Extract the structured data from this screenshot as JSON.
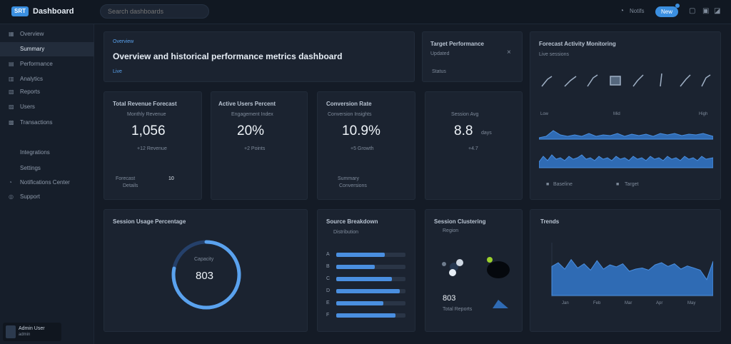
{
  "topbar": {
    "logo": "SRT",
    "title": "Dashboard",
    "search_placeholder": "Search dashboards",
    "notif_label": "Notifs",
    "new_label": "New"
  },
  "sidebar": {
    "items": [
      {
        "label": "Overview"
      },
      {
        "label": "Summary"
      },
      {
        "label": "Performance"
      },
      {
        "label": "Analytics"
      },
      {
        "label": "Reports"
      },
      {
        "label": "Users"
      },
      {
        "label": "Transactions"
      },
      {
        "label": "Integrations"
      },
      {
        "label": "Settings"
      },
      {
        "label": "Notifications Center"
      },
      {
        "label": "Support"
      }
    ],
    "user": {
      "name": "Admin User",
      "role": "admin"
    }
  },
  "hero": {
    "tag": "Overview",
    "headline": "Overview and historical performance metrics dashboard",
    "badge": "Live"
  },
  "target_card": {
    "title": "Target Performance",
    "sub": "Updated",
    "status": "Status"
  },
  "stats": [
    {
      "title": "Total Revenue Forecast",
      "label": "Monthly Revenue",
      "value": "1,056",
      "trend": "+12 Revenue",
      "f1": "Forecast",
      "f2": "Details",
      "side": "10"
    },
    {
      "title": "Active Users Percent",
      "label": "Engagement Index",
      "value": "20%",
      "trend": "+2 Points",
      "f1": "",
      "f2": "",
      "side": ""
    },
    {
      "title": "Conversion Rate",
      "label": "Conversion Insights",
      "value": "10.9%",
      "trend": "+5 Growth",
      "f1": "Summary",
      "f2": "Conversions",
      "side": ""
    },
    {
      "title": "",
      "label": "Session Avg",
      "value": "8.8",
      "unit": "days",
      "trend": "+4.7",
      "f1": "",
      "f2": "",
      "side": ""
    }
  ],
  "activity": {
    "title": "Forecast Activity Monitoring",
    "sub": "Live sessions",
    "r1_left": "Low",
    "r1_mid": "Mid",
    "r1_right": "High",
    "foot1": "Baseline",
    "foot2": "Target"
  },
  "gauge": {
    "title": "Session Usage Percentage",
    "label": "Capacity",
    "value": "803",
    "percent": 0.78
  },
  "breakdown": {
    "title": "Source Breakdown",
    "legend": "Distribution",
    "bars": [
      {
        "label": "A",
        "value": 0.7
      },
      {
        "label": "B",
        "value": 0.56
      },
      {
        "label": "C",
        "value": 0.8
      },
      {
        "label": "D",
        "value": 0.92
      },
      {
        "label": "E",
        "value": 0.68
      },
      {
        "label": "F",
        "value": 0.86
      }
    ]
  },
  "cluster": {
    "title": "Session Clustering",
    "sub": "Region",
    "value": "803",
    "foot": "Total Reports"
  },
  "trend": {
    "title": "Trends",
    "months": [
      "Jan",
      "Feb",
      "Mar",
      "Apr",
      "May"
    ],
    "values": [
      0.55,
      0.62,
      0.5,
      0.68,
      0.52,
      0.6,
      0.48,
      0.66,
      0.5,
      0.58,
      0.54,
      0.6,
      0.46,
      0.5,
      0.52,
      0.48,
      0.58,
      0.62,
      0.55,
      0.6,
      0.5,
      0.56,
      0.52,
      0.48,
      0.3,
      0.65
    ]
  }
}
